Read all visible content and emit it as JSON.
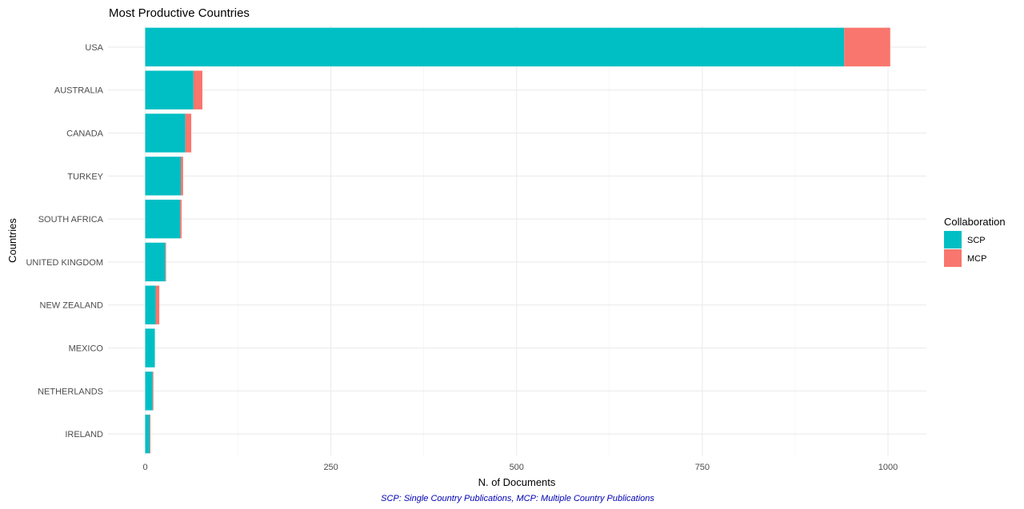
{
  "chart_data": {
    "type": "bar",
    "orientation": "horizontal",
    "stacked": true,
    "title": "Most Productive Countries",
    "xlabel": "N. of Documents",
    "ylabel": "Countries",
    "caption": "SCP: Single Country Publications, MCP: Multiple Country Publications",
    "categories": [
      "USA",
      "AUSTRALIA",
      "CANADA",
      "TURKEY",
      "SOUTH AFRICA",
      "UNITED KINGDOM",
      "NEW ZEALAND",
      "MEXICO",
      "NETHERLANDS",
      "IRELAND"
    ],
    "series": [
      {
        "name": "SCP",
        "color": "#00BFC4",
        "values": [
          941,
          65,
          54,
          48,
          47,
          27,
          14,
          13,
          10,
          6
        ]
      },
      {
        "name": "MCP",
        "color": "#F8766D",
        "values": [
          62,
          12,
          8,
          3,
          2,
          1,
          5,
          0,
          1,
          1
        ]
      }
    ],
    "xlim": [
      0,
      1050
    ],
    "xticks": [
      0,
      250,
      500,
      750,
      1000
    ],
    "legend": {
      "title": "Collaboration",
      "position": "right"
    },
    "grid": true
  }
}
